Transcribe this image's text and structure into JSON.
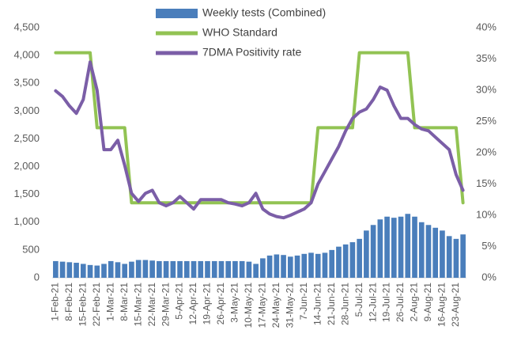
{
  "chart_data": {
    "type": "bar_line",
    "categories": [
      "1-Feb-21",
      null,
      "8-Feb-21",
      null,
      "15-Feb-21",
      null,
      "22-Feb-21",
      null,
      "1-Mar-21",
      null,
      "8-Mar-21",
      null,
      "15-Mar-21",
      null,
      "22-Mar-21",
      null,
      "29-Mar-21",
      null,
      "5-Apr-21",
      null,
      "12-Apr-21",
      null,
      "19-Apr-21",
      null,
      "26-Apr-21",
      null,
      "3-May-21",
      null,
      "10-May-21",
      null,
      "17-May-21",
      null,
      "24-May-21",
      null,
      "31-May-21",
      null,
      "7-Jun-21",
      null,
      "14-Jun-21",
      null,
      "21-Jun-21",
      null,
      "28-Jun-21",
      null,
      "5-Jul-21",
      null,
      "12-Jul-21",
      null,
      "19-Jul-21",
      null,
      "26-Jul-21",
      null,
      "2-Aug-21",
      null,
      "9-Aug-21",
      null,
      "16-Aug-21",
      null,
      "23-Aug-21",
      null
    ],
    "series": [
      {
        "name": "Weekly tests (Combined)",
        "kind": "bar",
        "color": "#4a7ebb",
        "axis": "y",
        "values": [
          300,
          290,
          280,
          270,
          250,
          230,
          220,
          250,
          300,
          280,
          250,
          290,
          320,
          320,
          310,
          300,
          300,
          300,
          300,
          300,
          300,
          300,
          300,
          300,
          300,
          300,
          300,
          300,
          290,
          250,
          350,
          400,
          420,
          410,
          380,
          400,
          430,
          450,
          430,
          450,
          500,
          560,
          600,
          640,
          700,
          850,
          950,
          1050,
          1100,
          1080,
          1100,
          1150,
          1100,
          1000,
          950,
          900,
          850,
          750,
          700,
          780
        ]
      },
      {
        "name": "WHO Standard",
        "kind": "line",
        "color": "#92c353",
        "axis": "y2",
        "values": [
          36,
          36,
          36,
          36,
          36,
          36,
          24,
          24,
          24,
          24,
          24,
          12,
          12,
          12,
          12,
          12,
          12,
          12,
          12,
          12,
          12,
          12,
          12,
          12,
          12,
          12,
          12,
          12,
          12,
          12,
          12,
          12,
          12,
          12,
          12,
          12,
          12,
          12,
          24,
          24,
          24,
          24,
          24,
          24,
          36,
          36,
          36,
          36,
          36,
          36,
          36,
          36,
          24,
          24,
          24,
          24,
          24,
          24,
          24,
          12
        ]
      },
      {
        "name": "7DMA Positivity rate",
        "kind": "line",
        "color": "#7b5ea7",
        "axis": "y2",
        "values": [
          29.9,
          29,
          27.5,
          26.3,
          28.5,
          34.5,
          30,
          20.5,
          20.5,
          22,
          18,
          13.5,
          12.2,
          13.5,
          14,
          12,
          11.5,
          12,
          13,
          12,
          11,
          12.5,
          12.5,
          12.5,
          12.5,
          12,
          11.8,
          11.5,
          12,
          13.5,
          11,
          10.2,
          9.8,
          9.6,
          10,
          10.5,
          11,
          12,
          15,
          17,
          19,
          21,
          23.5,
          25.5,
          26.5,
          27,
          28.5,
          30.5,
          30,
          27.5,
          25.5,
          25.5,
          24.5,
          23.8,
          23.5,
          22.5,
          21.5,
          20.5,
          16.5,
          14
        ]
      }
    ],
    "ylim": [
      0,
      4500
    ],
    "yticks": [
      0,
      500,
      {
        "value": 1000,
        "label": "1,000"
      },
      {
        "value": 1500,
        "label": "1,500"
      },
      {
        "value": 2000,
        "label": "2,000"
      },
      {
        "value": 2500,
        "label": "2,500"
      },
      {
        "value": 3000,
        "label": "3,000"
      },
      {
        "value": 3500,
        "label": "3,500"
      },
      {
        "value": 4000,
        "label": "4,000"
      },
      {
        "value": 4500,
        "label": "4,500"
      }
    ],
    "y2lim": [
      0,
      40
    ],
    "y2ticks": [
      {
        "value": 0,
        "label": "0%"
      },
      {
        "value": 5,
        "label": "5%"
      },
      {
        "value": 10,
        "label": "10%"
      },
      {
        "value": 15,
        "label": "15%"
      },
      {
        "value": 20,
        "label": "20%"
      },
      {
        "value": 25,
        "label": "25%"
      },
      {
        "value": 30,
        "label": "30%"
      },
      {
        "value": 35,
        "label": "35%"
      },
      {
        "value": 40,
        "label": "40%"
      }
    ],
    "legend": "top",
    "grid": false
  }
}
